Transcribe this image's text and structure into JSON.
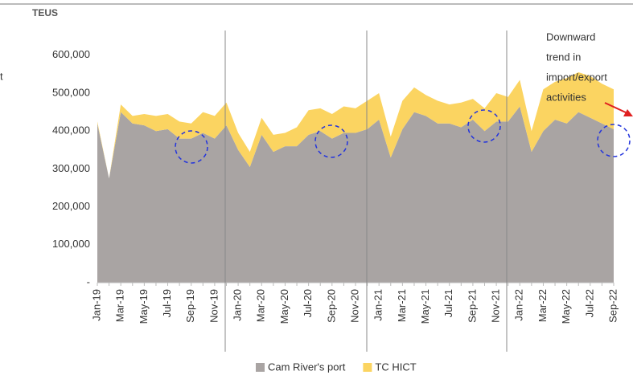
{
  "chart_data": {
    "type": "stacked_area",
    "y_label": "TEUS",
    "fragment": "t",
    "annotation_lines": [
      "Downward",
      "trend in",
      "import/export",
      "activities"
    ],
    "categories": [
      "Jan-19",
      null,
      "Mar-19",
      null,
      "May-19",
      null,
      "Jul-19",
      null,
      "Sep-19",
      null,
      "Nov-19",
      null,
      "Jan-20",
      null,
      "Mar-20",
      null,
      "May-20",
      null,
      "Jul-20",
      null,
      "Sep-20",
      null,
      "Nov-20",
      null,
      "Jan-21",
      null,
      "Mar-21",
      null,
      "May-21",
      null,
      "Jul-21",
      null,
      "Sep-21",
      null,
      "Nov-21",
      null,
      "Jan-22",
      null,
      "Mar-22",
      null,
      "May-22",
      null,
      "Jul-22",
      null,
      "Sep-22"
    ],
    "series": [
      {
        "name": "Cam River's port",
        "color": "#a9a4a3",
        "values": [
          420000,
          275000,
          450000,
          420000,
          415000,
          400000,
          405000,
          380000,
          380000,
          395000,
          380000,
          415000,
          350000,
          305000,
          390000,
          345000,
          360000,
          360000,
          390000,
          400000,
          380000,
          395000,
          395000,
          405000,
          430000,
          330000,
          405000,
          450000,
          440000,
          420000,
          420000,
          410000,
          430000,
          400000,
          425000,
          425000,
          465000,
          345000,
          400000,
          430000,
          420000,
          450000,
          435000,
          420000,
          405000
        ]
      },
      {
        "name": "TC HICT",
        "color": "#fbd461",
        "values": [
          5000,
          0,
          20000,
          20000,
          30000,
          40000,
          40000,
          45000,
          40000,
          55000,
          60000,
          60000,
          45000,
          40000,
          45000,
          45000,
          35000,
          50000,
          65000,
          60000,
          65000,
          70000,
          65000,
          75000,
          70000,
          55000,
          75000,
          65000,
          55000,
          60000,
          50000,
          65000,
          55000,
          60000,
          75000,
          65000,
          70000,
          55000,
          110000,
          100000,
          120000,
          105000,
          110000,
          105000,
          105000
        ]
      }
    ],
    "ylim": [
      0,
      700000
    ],
    "yticks": [
      {
        "value": 0,
        "label": "-"
      },
      {
        "value": 100000,
        "label": "100,000"
      },
      {
        "value": 200000,
        "label": "200,000"
      },
      {
        "value": 300000,
        "label": "300,000"
      },
      {
        "value": 400000,
        "label": "400,000"
      },
      {
        "value": 500000,
        "label": "500,000"
      },
      {
        "value": 600000,
        "label": "600,000"
      }
    ]
  }
}
